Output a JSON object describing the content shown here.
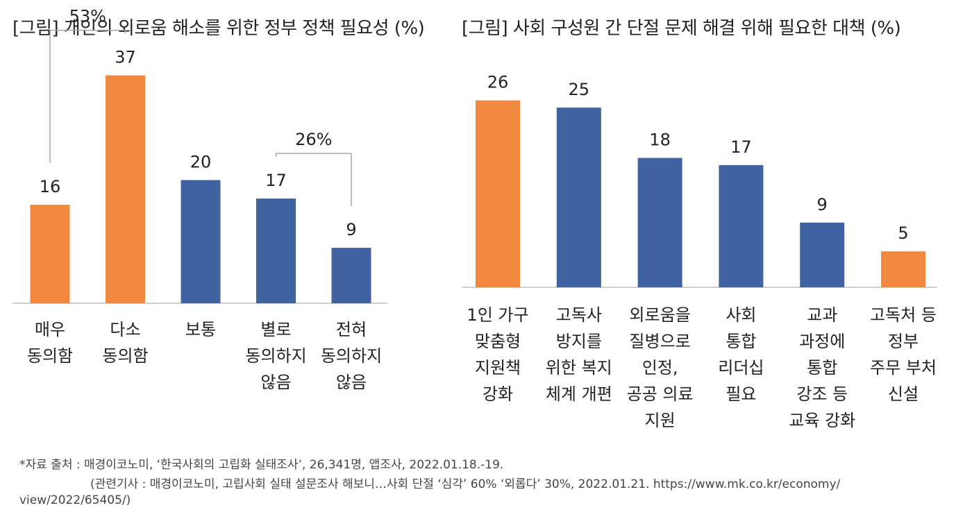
{
  "colors": {
    "highlight": "#F0883F",
    "base": "#3F62A0",
    "axis": "#BFBFBF",
    "bracket": "#A6A6A6",
    "text": "#222222"
  },
  "footnote": {
    "source": "*자료 출처 : 매경이코노미, ‘한국사회의 고립화 실태조사’, 26,341명, 앱조사, 2022.01.18.-19.",
    "related": "(관련기사 : 매경이코노미, 고립사회 실태 설문조사 해보니…사회 단절 ‘심각’ 60% ‘외롭다’ 30%, 2022.01.21. https://www.mk.co.kr/economy/",
    "url": "view/2022/65405/)"
  },
  "chart_data": [
    {
      "type": "bar",
      "title": "[그림] 개인의 외로움 해소를 위한 정부 정책 필요성 (%)",
      "xlabel": "",
      "ylabel": "",
      "ylim": [
        0,
        40
      ],
      "grid": false,
      "categories": [
        [
          "매우",
          "동의함"
        ],
        [
          "다소",
          "동의함"
        ],
        [
          "보통"
        ],
        [
          "별로",
          "동의하지",
          "않음"
        ],
        [
          "전혀",
          "동의하지",
          "않음"
        ]
      ],
      "values": [
        16,
        37,
        20,
        17,
        9
      ],
      "highlight": [
        true,
        true,
        false,
        false,
        false
      ],
      "annotations": [
        {
          "label": "53%",
          "from_index": 0,
          "to_index": 1
        },
        {
          "label": "26%",
          "from_index": 3,
          "to_index": 4
        }
      ]
    },
    {
      "type": "bar",
      "title": "[그림] 사회 구성원 간 단절 문제 해결 위해 필요한 대책 (%)",
      "xlabel": "",
      "ylabel": "",
      "ylim": [
        0,
        28
      ],
      "grid": false,
      "categories": [
        [
          "1인 가구",
          "맞춤형",
          "지원책",
          "강화"
        ],
        [
          "고독사",
          "방지를",
          "위한 복지",
          "체계 개편"
        ],
        [
          "외로움을",
          "질병으로",
          "인정,",
          "공공 의료",
          "지원"
        ],
        [
          "사회",
          "통합",
          "리더십",
          "필요"
        ],
        [
          "교과",
          "과정에",
          "통합",
          "강조 등",
          "교육 강화"
        ],
        [
          "고독처 등",
          "정부",
          "주무 부처",
          "신설"
        ]
      ],
      "values": [
        26,
        25,
        18,
        17,
        9,
        5
      ],
      "highlight": [
        true,
        false,
        false,
        false,
        false,
        true
      ],
      "annotations": []
    }
  ]
}
